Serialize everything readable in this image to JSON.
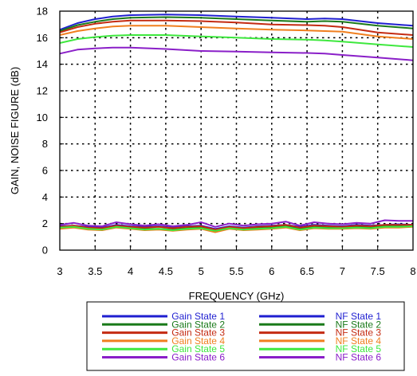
{
  "chart_data": {
    "type": "line",
    "xlabel": "FREQUENCY (GHz)",
    "ylabel": "GAIN, NOISE FIGURE (dB)",
    "xlim": [
      3,
      8
    ],
    "ylim": [
      0,
      18
    ],
    "xticks": [
      3,
      3.5,
      4,
      4.5,
      5,
      5.5,
      6,
      6.5,
      7,
      7.5,
      8
    ],
    "xtick_labels": [
      "3",
      "3.5",
      "4",
      "4.5",
      "5",
      "5.5",
      "6",
      "6.5",
      "7",
      "7.5",
      "8"
    ],
    "yticks": [
      0,
      2,
      4,
      6,
      8,
      10,
      12,
      14,
      16,
      18
    ],
    "ytick_labels": [
      "0",
      "2",
      "4",
      "6",
      "8",
      "10",
      "12",
      "14",
      "16",
      "18"
    ],
    "grid": true,
    "legend_placement": "below",
    "series": [
      {
        "name": "Gain State 1",
        "color": "#1f1fd0",
        "x": [
          3,
          3.25,
          3.5,
          3.75,
          4,
          4.5,
          5,
          5.5,
          6,
          6.5,
          6.75,
          7,
          7.5,
          8
        ],
        "y": [
          16.6,
          17.1,
          17.4,
          17.6,
          17.7,
          17.75,
          17.7,
          17.6,
          17.5,
          17.4,
          17.45,
          17.4,
          17.1,
          16.9
        ]
      },
      {
        "name": "Gain State 2",
        "color": "#1a7a1a",
        "x": [
          3,
          3.25,
          3.5,
          3.75,
          4,
          4.5,
          5,
          5.5,
          6,
          6.5,
          6.75,
          7,
          7.5,
          8
        ],
        "y": [
          16.5,
          16.95,
          17.2,
          17.4,
          17.5,
          17.55,
          17.5,
          17.4,
          17.3,
          17.2,
          17.25,
          17.2,
          16.9,
          16.7
        ]
      },
      {
        "name": "Gain State 3",
        "color": "#c42b12",
        "x": [
          3,
          3.25,
          3.5,
          3.75,
          4,
          4.5,
          5,
          5.5,
          6,
          6.5,
          6.75,
          7,
          7.5,
          8
        ],
        "y": [
          16.4,
          16.8,
          17.05,
          17.2,
          17.3,
          17.3,
          17.25,
          17.15,
          17.0,
          16.95,
          16.9,
          16.8,
          16.4,
          16.2
        ]
      },
      {
        "name": "Gain State 4",
        "color": "#f07f1f",
        "x": [
          3,
          3.25,
          3.5,
          3.75,
          4,
          4.5,
          5,
          5.5,
          6,
          6.5,
          6.75,
          7,
          7.5,
          8
        ],
        "y": [
          16.2,
          16.5,
          16.7,
          16.85,
          16.9,
          16.9,
          16.8,
          16.7,
          16.6,
          16.55,
          16.5,
          16.45,
          16.1,
          15.9
        ]
      },
      {
        "name": "Gain State 5",
        "color": "#3ee83e",
        "x": [
          3,
          3.25,
          3.5,
          3.75,
          4,
          4.5,
          5,
          5.5,
          6,
          6.5,
          6.75,
          7,
          7.5,
          8
        ],
        "y": [
          15.6,
          15.9,
          16.05,
          16.15,
          16.2,
          16.2,
          16.1,
          16.0,
          15.9,
          15.85,
          15.8,
          15.7,
          15.5,
          15.3
        ]
      },
      {
        "name": "Gain State 6",
        "color": "#8a1fc8",
        "x": [
          3,
          3.25,
          3.5,
          3.75,
          4,
          4.5,
          5,
          5.5,
          6,
          6.5,
          6.75,
          7,
          7.5,
          8
        ],
        "y": [
          14.8,
          15.1,
          15.2,
          15.25,
          15.25,
          15.15,
          15.0,
          14.95,
          14.9,
          14.85,
          14.8,
          14.7,
          14.5,
          14.3
        ]
      },
      {
        "name": "NF State 1",
        "color": "#1f1fd0",
        "x": [
          3,
          3.2,
          3.4,
          3.6,
          3.8,
          4,
          4.2,
          4.4,
          4.6,
          4.8,
          5,
          5.2,
          5.4,
          5.6,
          5.8,
          6,
          6.2,
          6.4,
          6.6,
          6.8,
          7,
          7.2,
          7.4,
          7.6,
          7.8,
          8
        ],
        "y": [
          1.8,
          1.85,
          1.75,
          1.7,
          1.9,
          1.8,
          1.75,
          1.8,
          1.7,
          1.8,
          1.85,
          1.6,
          1.8,
          1.7,
          1.8,
          1.85,
          1.9,
          1.75,
          1.9,
          1.85,
          1.8,
          1.9,
          1.85,
          1.9,
          1.95,
          1.9
        ]
      },
      {
        "name": "NF State 2",
        "color": "#1a7a1a",
        "x": [
          3,
          3.2,
          3.4,
          3.6,
          3.8,
          4,
          4.2,
          4.4,
          4.6,
          4.8,
          5,
          5.2,
          5.4,
          5.6,
          5.8,
          6,
          6.2,
          6.4,
          6.6,
          6.8,
          7,
          7.2,
          7.4,
          7.6,
          7.8,
          8
        ],
        "y": [
          1.7,
          1.8,
          1.65,
          1.6,
          1.8,
          1.7,
          1.6,
          1.6,
          1.55,
          1.65,
          1.7,
          1.5,
          1.7,
          1.6,
          1.65,
          1.7,
          1.8,
          1.6,
          1.75,
          1.7,
          1.7,
          1.75,
          1.7,
          1.8,
          1.8,
          1.85
        ]
      },
      {
        "name": "NF State 3",
        "color": "#c42b12",
        "x": [
          3,
          3.2,
          3.4,
          3.6,
          3.8,
          4,
          4.2,
          4.4,
          4.6,
          4.8,
          5,
          5.2,
          5.4,
          5.6,
          5.8,
          6,
          6.2,
          6.4,
          6.6,
          6.8,
          7,
          7.2,
          7.4,
          7.6,
          7.8,
          8
        ],
        "y": [
          1.75,
          1.85,
          1.7,
          1.65,
          1.85,
          1.75,
          1.7,
          1.75,
          1.65,
          1.75,
          1.8,
          1.55,
          1.75,
          1.65,
          1.75,
          1.8,
          1.9,
          1.7,
          1.85,
          1.8,
          1.75,
          1.85,
          1.8,
          1.9,
          1.9,
          1.9
        ]
      },
      {
        "name": "NF State 4",
        "color": "#f07f1f",
        "x": [
          3,
          3.2,
          3.4,
          3.6,
          3.8,
          4,
          4.2,
          4.4,
          4.6,
          4.8,
          5,
          5.2,
          5.4,
          5.6,
          5.8,
          6,
          6.2,
          6.4,
          6.6,
          6.8,
          7,
          7.2,
          7.4,
          7.6,
          7.8,
          8
        ],
        "y": [
          1.6,
          1.7,
          1.55,
          1.5,
          1.7,
          1.6,
          1.5,
          1.55,
          1.45,
          1.55,
          1.6,
          1.35,
          1.6,
          1.5,
          1.55,
          1.6,
          1.7,
          1.5,
          1.65,
          1.6,
          1.6,
          1.65,
          1.6,
          1.7,
          1.7,
          1.75
        ]
      },
      {
        "name": "NF State 5",
        "color": "#3ee83e",
        "x": [
          3,
          3.2,
          3.4,
          3.6,
          3.8,
          4,
          4.2,
          4.4,
          4.6,
          4.8,
          5,
          5.2,
          5.4,
          5.6,
          5.8,
          6,
          6.2,
          6.4,
          6.6,
          6.8,
          7,
          7.2,
          7.4,
          7.6,
          7.8,
          8
        ],
        "y": [
          1.7,
          1.75,
          1.6,
          1.55,
          1.75,
          1.65,
          1.55,
          1.6,
          1.5,
          1.6,
          1.65,
          1.45,
          1.65,
          1.55,
          1.6,
          1.65,
          1.75,
          1.55,
          1.7,
          1.65,
          1.65,
          1.7,
          1.65,
          1.75,
          1.75,
          1.8
        ]
      },
      {
        "name": "NF State 6",
        "color": "#8a1fc8",
        "x": [
          3,
          3.2,
          3.4,
          3.6,
          3.8,
          4,
          4.2,
          4.4,
          4.6,
          4.8,
          5,
          5.2,
          5.4,
          5.6,
          5.8,
          6,
          6.2,
          6.4,
          6.6,
          6.8,
          7,
          7.2,
          7.4,
          7.6,
          7.8,
          8
        ],
        "y": [
          1.9,
          2.05,
          1.85,
          1.8,
          2.1,
          1.95,
          1.85,
          1.95,
          1.8,
          1.9,
          2.1,
          1.75,
          2.0,
          1.85,
          1.95,
          2.0,
          2.15,
          1.85,
          2.1,
          2.0,
          1.95,
          2.05,
          2.0,
          2.25,
          2.2,
          2.2
        ]
      }
    ]
  }
}
